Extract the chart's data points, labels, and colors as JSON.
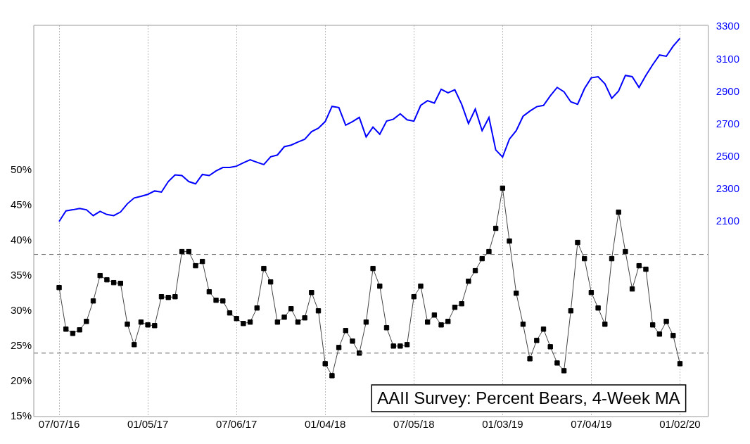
{
  "chart_data": {
    "type": "line",
    "x": [
      "2016-07-07",
      "2016-07-21",
      "2016-08-04",
      "2016-08-18",
      "2016-09-01",
      "2016-09-15",
      "2016-09-29",
      "2016-10-13",
      "2016-10-27",
      "2016-11-10",
      "2016-11-24",
      "2016-12-08",
      "2016-12-22",
      "2017-01-05",
      "2017-01-19",
      "2017-02-02",
      "2017-02-16",
      "2017-03-02",
      "2017-03-16",
      "2017-03-30",
      "2017-04-13",
      "2017-04-27",
      "2017-05-11",
      "2017-05-25",
      "2017-06-08",
      "2017-06-22",
      "2017-07-06",
      "2017-07-20",
      "2017-08-03",
      "2017-08-17",
      "2017-08-31",
      "2017-09-14",
      "2017-09-28",
      "2017-10-12",
      "2017-10-26",
      "2017-11-09",
      "2017-11-23",
      "2017-12-07",
      "2017-12-21",
      "2018-01-04",
      "2018-01-18",
      "2018-02-01",
      "2018-02-15",
      "2018-03-01",
      "2018-03-15",
      "2018-03-29",
      "2018-04-12",
      "2018-04-26",
      "2018-05-10",
      "2018-05-24",
      "2018-06-07",
      "2018-06-21",
      "2018-07-05",
      "2018-07-19",
      "2018-08-02",
      "2018-08-16",
      "2018-08-30",
      "2018-09-13",
      "2018-09-27",
      "2018-10-11",
      "2018-10-25",
      "2018-11-08",
      "2018-11-22",
      "2018-12-06",
      "2018-12-20",
      "2019-01-03",
      "2019-01-17",
      "2019-01-31",
      "2019-02-14",
      "2019-02-28",
      "2019-03-14",
      "2019-03-28",
      "2019-04-11",
      "2019-04-25",
      "2019-05-09",
      "2019-05-23",
      "2019-06-06",
      "2019-06-20",
      "2019-07-04",
      "2019-07-18",
      "2019-08-01",
      "2019-08-15",
      "2019-08-29",
      "2019-09-12",
      "2019-09-26",
      "2019-10-10",
      "2019-10-24",
      "2019-11-07",
      "2019-11-21",
      "2019-12-05",
      "2019-12-19",
      "2020-01-02"
    ],
    "series": [
      {
        "name": "AAII Survey: Percent Bears, 4-Week MA",
        "color": "#000000",
        "marker": "square",
        "values": [
          33.3,
          27.4,
          26.8,
          27.3,
          28.5,
          31.4,
          35.0,
          34.4,
          34.0,
          33.9,
          28.1,
          25.2,
          28.4,
          28.0,
          27.9,
          32.0,
          31.9,
          32.0,
          38.4,
          38.4,
          36.4,
          37.0,
          32.7,
          31.5,
          31.4,
          29.7,
          28.9,
          28.2,
          28.4,
          30.4,
          36.0,
          34.1,
          28.4,
          29.1,
          30.3,
          28.4,
          29.0,
          32.6,
          30.0,
          22.5,
          20.8,
          24.8,
          27.2,
          25.7,
          24.0,
          28.4,
          36.0,
          33.5,
          27.6,
          25.0,
          25.0,
          25.2,
          32.0,
          33.5,
          28.4,
          29.4,
          28.0,
          28.5,
          30.5,
          31.0,
          34.2,
          35.7,
          37.4,
          38.4,
          41.7,
          47.4,
          39.9,
          32.5,
          28.1,
          23.2,
          25.8,
          27.4,
          24.9,
          22.6,
          21.5,
          30.0,
          39.7,
          37.4,
          32.6,
          30.4,
          28.1,
          37.4,
          44.0,
          38.4,
          33.1,
          36.4,
          35.9,
          28.0,
          26.7,
          28.5,
          26.5,
          22.5
        ]
      },
      {
        "color": "#0000ff",
        "axis": "y2",
        "marker": "none",
        "values": [
          2100,
          2165,
          2172,
          2180,
          2172,
          2136,
          2162,
          2143,
          2136,
          2158,
          2209,
          2245,
          2255,
          2267,
          2288,
          2281,
          2346,
          2387,
          2383,
          2346,
          2332,
          2390,
          2383,
          2412,
          2433,
          2433,
          2441,
          2462,
          2480,
          2465,
          2451,
          2499,
          2510,
          2561,
          2571,
          2590,
          2607,
          2654,
          2675,
          2716,
          2810,
          2803,
          2694,
          2716,
          2742,
          2622,
          2682,
          2638,
          2719,
          2731,
          2764,
          2727,
          2719,
          2816,
          2845,
          2830,
          2916,
          2894,
          2912,
          2823,
          2704,
          2793,
          2660,
          2741,
          2541,
          2497,
          2608,
          2660,
          2749,
          2781,
          2808,
          2816,
          2875,
          2927,
          2900,
          2838,
          2823,
          2919,
          2986,
          2993,
          2949,
          2860,
          2904,
          3001,
          2993,
          2927,
          3001,
          3067,
          3127,
          3119,
          3181,
          3230
        ]
      }
    ],
    "xlim": [
      "2016-05-16",
      "2020-02-29"
    ],
    "xticks": [
      {
        "value": "2016-07-07",
        "label": "07/07/16"
      },
      {
        "value": "2017-01-05",
        "label": "01/05/17"
      },
      {
        "value": "2017-07-06",
        "label": "07/06/17"
      },
      {
        "value": "2018-01-04",
        "label": "01/04/18"
      },
      {
        "value": "2018-07-05",
        "label": "07/05/18"
      },
      {
        "value": "2019-01-03",
        "label": "01/03/19"
      },
      {
        "value": "2019-07-04",
        "label": "07/04/19"
      },
      {
        "value": "2020-01-02",
        "label": "01/02/20"
      }
    ],
    "ylim": [
      15,
      70.5
    ],
    "yticks": [
      {
        "value": 15,
        "label": "15%"
      },
      {
        "value": 20,
        "label": "20%"
      },
      {
        "value": 25,
        "label": "25%"
      },
      {
        "value": 30,
        "label": "30%"
      },
      {
        "value": 35,
        "label": "35%"
      },
      {
        "value": 40,
        "label": "40%"
      },
      {
        "value": 45,
        "label": "45%"
      },
      {
        "value": 50,
        "label": "50%"
      }
    ],
    "y2lim": [
      896,
      3310
    ],
    "y2ticks": [
      2100,
      2300,
      2500,
      2700,
      2900,
      3100,
      3300
    ],
    "ref_lines": [
      {
        "axis": "y",
        "value": 38,
        "color": "#666666",
        "line_style": "dashed"
      },
      {
        "axis": "y",
        "value": 24,
        "color": "#666666",
        "line_style": "dashed"
      }
    ],
    "grid": "x"
  }
}
